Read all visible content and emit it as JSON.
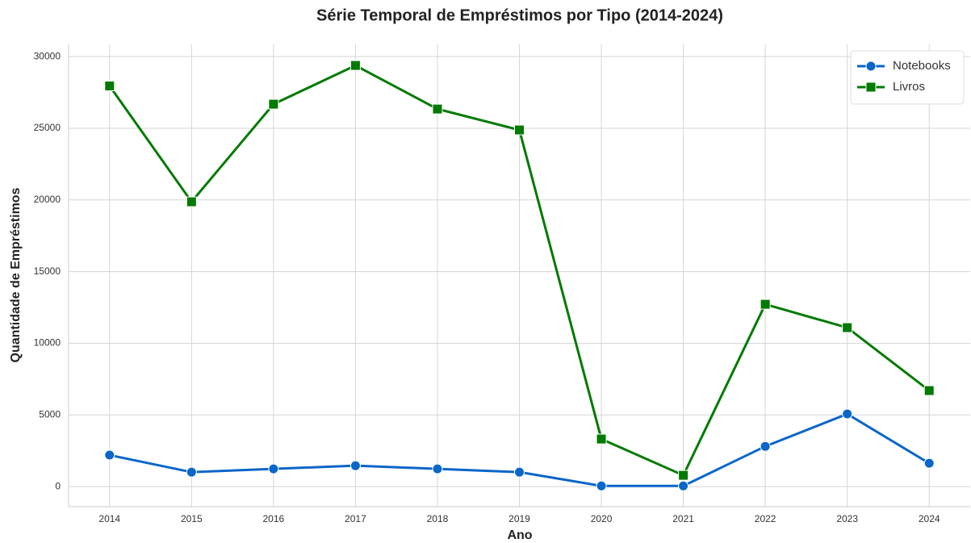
{
  "chart_data": {
    "type": "line",
    "title": "Série Temporal de Empréstimos por Tipo (2014-2024)",
    "xlabel": "Ano",
    "ylabel": "Quantidade de Empréstimos",
    "x": [
      2014,
      2015,
      2016,
      2017,
      2018,
      2019,
      2020,
      2021,
      2022,
      2023,
      2024
    ],
    "series": [
      {
        "name": "Notebooks",
        "color": "#0a66c8",
        "marker": "circle",
        "values": [
          2200,
          1010,
          1240,
          1460,
          1240,
          1010,
          50,
          50,
          2810,
          5070,
          1630
        ]
      },
      {
        "name": "Livros",
        "color": "#007a00",
        "marker": "square",
        "values": [
          27950,
          19870,
          26680,
          29380,
          26340,
          24880,
          3320,
          790,
          12720,
          11090,
          6700
        ]
      }
    ],
    "xlim": [
      2013.5,
      2024.5
    ],
    "xticks": [
      2014,
      2015,
      2016,
      2017,
      2018,
      2019,
      2020,
      2021,
      2022,
      2023,
      2024
    ],
    "ylim": [
      -1400,
      30850
    ],
    "yticks": [
      0,
      5000,
      10000,
      15000,
      20000,
      25000,
      30000
    ],
    "grid": true,
    "legend": "upper right"
  }
}
